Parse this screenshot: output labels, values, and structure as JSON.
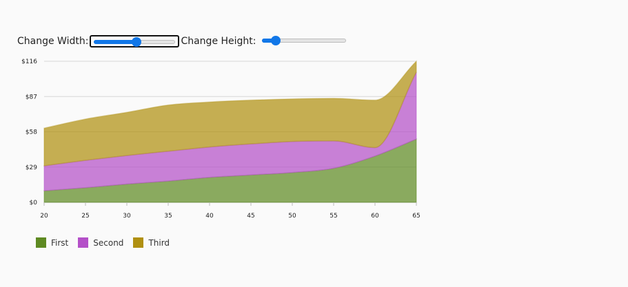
{
  "controls": {
    "width_label": "Change Width:",
    "height_label": "Change Height:",
    "width_value": 0.52,
    "height_value": 0.17
  },
  "colors": {
    "first": "#5e8a22",
    "second": "#b450c8",
    "third": "#b09010"
  },
  "chart_data": {
    "type": "area",
    "stacked": true,
    "x": [
      20,
      25,
      30,
      35,
      40,
      45,
      50,
      55,
      60,
      65
    ],
    "xlim": [
      20,
      65
    ],
    "ylim": [
      0,
      116
    ],
    "x_ticks": [
      "20",
      "25",
      "30",
      "35",
      "40",
      "45",
      "50",
      "55",
      "60",
      "65"
    ],
    "y_ticks": [
      "$0",
      "$29",
      "$58",
      "$87",
      "$116"
    ],
    "y_tick_values": [
      0,
      29,
      58,
      87,
      116
    ],
    "grid": true,
    "legend_position": "bottom-left",
    "series": [
      {
        "name": "First",
        "values": [
          9.5,
          12,
          15,
          17.5,
          20.5,
          22.5,
          24.5,
          28,
          38,
          52
        ]
      },
      {
        "name": "Second",
        "values": [
          20.5,
          22.5,
          23.5,
          24.5,
          25,
          25.5,
          25.5,
          22.5,
          7,
          55
        ]
      },
      {
        "name": "Third",
        "values": [
          31,
          34,
          35.5,
          38,
          37,
          36,
          35,
          35,
          39,
          9
        ]
      }
    ]
  }
}
